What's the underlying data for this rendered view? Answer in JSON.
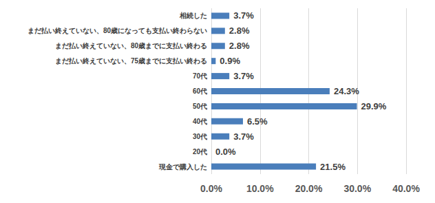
{
  "chart_data": {
    "type": "bar",
    "orientation": "horizontal",
    "categories": [
      "相続した",
      "まだ払い終えていない、80歳になっても支払い終わらない",
      "まだ払い終えていない、80歳までに支払い終わる",
      "まだ払い終えていない、75歳までに支払い終わる",
      "70代",
      "60代",
      "50代",
      "40代",
      "30代",
      "20代",
      "現金で購入した"
    ],
    "values": [
      3.7,
      2.8,
      2.8,
      0.9,
      3.7,
      24.3,
      29.9,
      6.5,
      3.7,
      0.0,
      21.5
    ],
    "value_labels": [
      "3.7%",
      "2.8%",
      "2.8%",
      "0.9%",
      "3.7%",
      "24.3%",
      "29.9%",
      "6.5%",
      "3.7%",
      "0.0%",
      "21.5%"
    ],
    "color": "#4a7ebb",
    "xlim": [
      0,
      40
    ],
    "xticks": [
      {
        "value": 0,
        "label": "0.0%"
      },
      {
        "value": 10,
        "label": "10.0%"
      },
      {
        "value": 20,
        "label": "20.0%"
      },
      {
        "value": 30,
        "label": "30.0%"
      },
      {
        "value": 40,
        "label": "40.0%"
      }
    ],
    "grid": true,
    "data_labels": true
  }
}
